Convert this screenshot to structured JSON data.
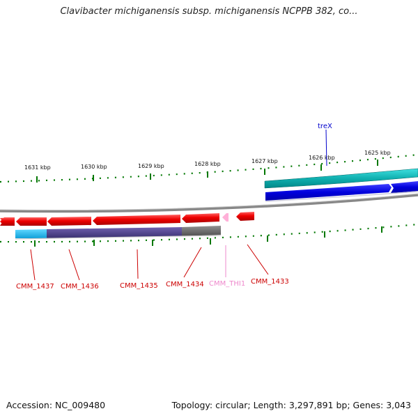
{
  "title": "Clavibacter michiganensis subsp. michiganensis NCPPB 382, co...",
  "ruler_labels": [
    "1631 kbp",
    "1630 kbp",
    "1629 kbp",
    "1628 kbp",
    "1627 kbp",
    "1626 kbp",
    "1625 kbp"
  ],
  "genes_forward": [
    {
      "name": "treX",
      "color": "#0000cc"
    }
  ],
  "genes_reverse": [
    {
      "name": "CMM_1437",
      "color": "#cc0000"
    },
    {
      "name": "CMM_1436",
      "color": "#cc0000"
    },
    {
      "name": "CMM_1435",
      "color": "#cc0000"
    },
    {
      "name": "CMM_1434",
      "color": "#cc0000"
    },
    {
      "name": "CMM_THI1",
      "color": "#ee88cc"
    },
    {
      "name": "CMM_1433",
      "color": "#cc0000"
    }
  ],
  "colors": {
    "forward_cds": "#0000ee",
    "forward_feature": "#20c0c0",
    "reverse_cds": "#ee0000",
    "reverse_feature_a": "#20b8e8",
    "reverse_feature_b": "#504090",
    "reverse_feature_c": "#707070",
    "tick": "#007700",
    "backbone": "#888888"
  },
  "footer": {
    "accession": "Accession: NC_009480",
    "summary": "Topology: circular; Length: 3,297,891 bp; Genes: 3,043"
  }
}
